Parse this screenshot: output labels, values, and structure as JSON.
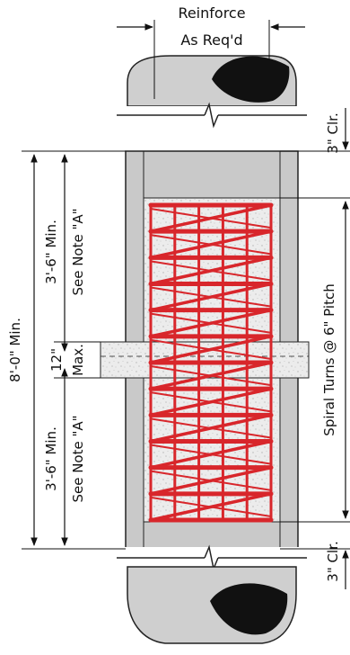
{
  "labels": {
    "reinforce": "Reinforce",
    "as_reqd": "As Req'd",
    "overall_height": "8'-0\" Min.",
    "upper_min": "3'-6\" Min.",
    "upper_note": "See Note \"A\"",
    "lower_min": "3'-6\" Min.",
    "lower_note": "See Note \"A\"",
    "joint_12": "12\"",
    "joint_max": "Max.",
    "top_clear": "3\" Clr.",
    "bottom_clear": "3\" Clr.",
    "spiral_turns": "Spiral Turns @ 6\" Pitch"
  },
  "colors": {
    "spiral": "#d8262b",
    "pile_gray": "#cfcfcf",
    "pile_dark": "#b9b9b9",
    "pipe_void": "#111111",
    "concrete": "#e8e8e8",
    "outline": "#222222"
  },
  "icons": {
    "break_line_top": "break-line-icon",
    "break_line_bottom": "break-line-icon"
  }
}
